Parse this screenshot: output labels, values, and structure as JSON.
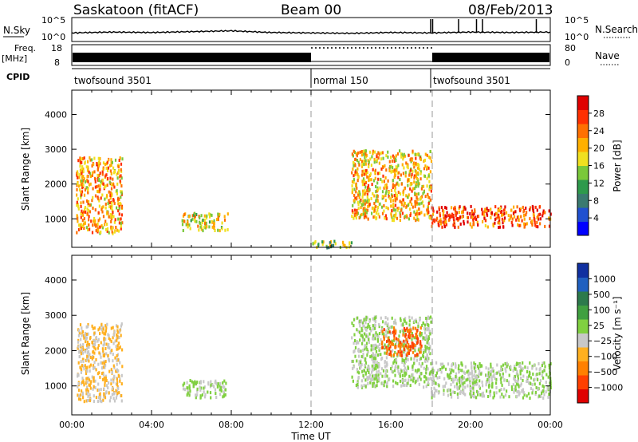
{
  "header": {
    "station": "Saskatoon (fitACF)",
    "beam": "Beam 00",
    "date": "08/Feb/2013"
  },
  "noise_panel": {
    "left_label": "N.Sky",
    "left_ticks": [
      "10^5",
      "10^0"
    ],
    "right_ticks": [
      "10^5",
      "10^0"
    ],
    "right_label": "N.Search"
  },
  "freq_panel": {
    "left_label_1": "Freq.",
    "left_label_2": "[MHz]",
    "left_ticks": [
      "18",
      "8"
    ],
    "right_ticks": [
      "80",
      "0"
    ],
    "right_label": "Nave"
  },
  "cpid_panel": {
    "label": "CPID",
    "segments": [
      {
        "name": "twofsound 3501",
        "start_h": 0,
        "end_h": 12
      },
      {
        "name": "normal 150",
        "start_h": 12,
        "end_h": 18
      },
      {
        "name": "twofsound 3501",
        "start_h": 18,
        "end_h": 24
      }
    ]
  },
  "x_axis": {
    "label": "Time UT",
    "ticks": [
      "00:00",
      "04:00",
      "08:00",
      "12:00",
      "16:00",
      "20:00",
      "00:00"
    ],
    "tick_hours": [
      0,
      4,
      8,
      12,
      16,
      20,
      24
    ]
  },
  "power_panel": {
    "ylabel": "Slant Range [km]",
    "yticks": [
      "4000",
      "3000",
      "2000",
      "1000"
    ],
    "ytick_values": [
      4000,
      3000,
      2000,
      1000
    ],
    "colorbar_label": "Power [dB]",
    "colorbar_ticks": [
      "28",
      "24",
      "20",
      "16",
      "12",
      "8",
      "4"
    ],
    "colorbar_colors": [
      "#0000ff",
      "#2050d0",
      "#3a7a70",
      "#2e9a4c",
      "#7ac83a",
      "#f0e020",
      "#ffb000",
      "#ff7000",
      "#ff3000",
      "#e00000"
    ]
  },
  "velocity_panel": {
    "ylabel": "Slant Range [km]",
    "yticks": [
      "4000",
      "3000",
      "2000",
      "1000"
    ],
    "ytick_values": [
      4000,
      3000,
      2000,
      1000
    ],
    "colorbar_label": "Velocity [m s⁻¹]",
    "colorbar_ticks": [
      "1000",
      "500",
      "100",
      "25",
      "−25",
      "−100",
      "−500",
      "−1000"
    ],
    "colorbar_colors": [
      "#e00000",
      "#ff4000",
      "#ff8000",
      "#ffb020",
      "#c8c8c8",
      "#80d040",
      "#40a040",
      "#2c7a4c",
      "#2060c0",
      "#1030a0"
    ]
  },
  "chart_data": [
    {
      "type": "line",
      "title": "N.Sky",
      "x": [
        0,
        2,
        4,
        6,
        8,
        10,
        12,
        14,
        16,
        18,
        20,
        22,
        24
      ],
      "values": [
        1.3,
        1.5,
        1.4,
        1.6,
        1.8,
        1.4,
        1.3,
        1.2,
        1.4,
        1.3,
        1.5,
        1.4,
        1.5
      ],
      "ylim": [
        0,
        5
      ],
      "xlabel": "Time UT"
    },
    {
      "type": "heatmap",
      "title": "Power [dB]",
      "xlabel": "Time UT",
      "ylabel": "Slant Range [km]",
      "xlim": [
        0,
        24
      ],
      "ylim": [
        180,
        4700
      ],
      "color_range": [
        0,
        32
      ],
      "regions": [
        {
          "t0": 0.2,
          "t1": 2.5,
          "r0": 600,
          "r1": 2800,
          "value": 22
        },
        {
          "t0": 5.5,
          "t1": 7.8,
          "r0": 700,
          "r1": 1200,
          "value": 18
        },
        {
          "t0": 12.0,
          "t1": 14.0,
          "r0": 200,
          "r1": 400,
          "value": 14
        },
        {
          "t0": 14.0,
          "t1": 18.0,
          "r0": 1000,
          "r1": 3000,
          "value": 20
        },
        {
          "t0": 18.0,
          "t1": 24.0,
          "r0": 800,
          "r1": 1400,
          "value": 26
        }
      ]
    },
    {
      "type": "heatmap",
      "title": "Velocity [m s⁻¹]",
      "xlabel": "Time UT",
      "ylabel": "Slant Range [km]",
      "xlim": [
        0,
        24
      ],
      "ylim": [
        180,
        4700
      ],
      "color_range": [
        -1000,
        1000
      ],
      "regions": [
        {
          "t0": 0.2,
          "t1": 2.5,
          "r0": 600,
          "r1": 2800,
          "value": -200
        },
        {
          "t0": 5.5,
          "t1": 7.8,
          "r0": 700,
          "r1": 1200,
          "value": 0
        },
        {
          "t0": 14.0,
          "t1": 18.0,
          "r0": 1000,
          "r1": 3000,
          "value": 0
        },
        {
          "t0": 15.5,
          "t1": 17.5,
          "r0": 1900,
          "r1": 2700,
          "value": -600
        },
        {
          "t0": 18.0,
          "t1": 24.0,
          "r0": 700,
          "r1": 1700,
          "value": 0
        }
      ]
    }
  ]
}
